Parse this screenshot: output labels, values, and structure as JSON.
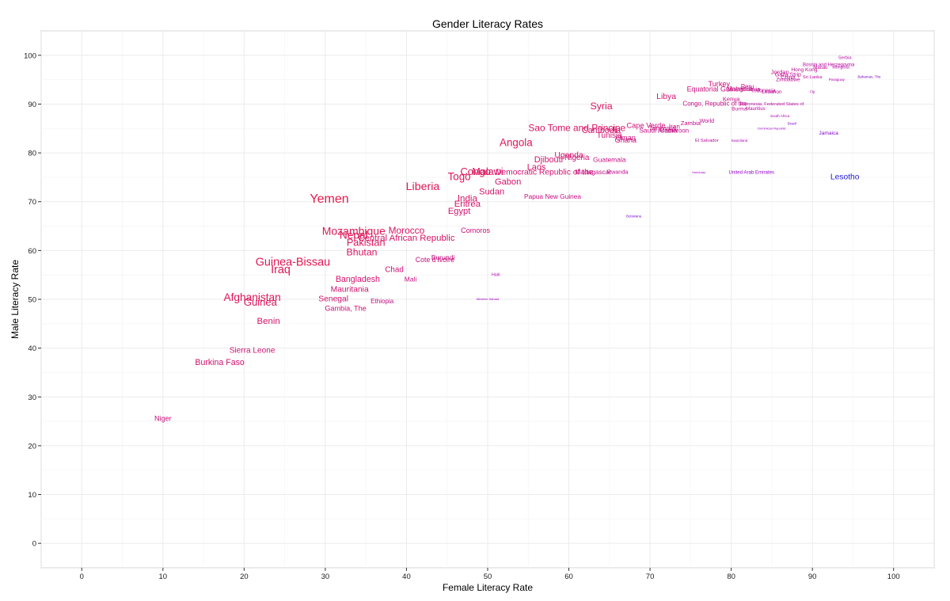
{
  "chart_data": {
    "type": "scatter",
    "title": "Gender Literacy Rates",
    "xlabel": "Female Literacy Rate",
    "ylabel": "Male Literacy Rate",
    "xlim": [
      -5,
      105
    ],
    "ylim": [
      -5,
      105
    ],
    "xticks": [
      "0",
      "10",
      "20",
      "30",
      "40",
      "50",
      "60",
      "70",
      "80",
      "90",
      "100"
    ],
    "yticks": [
      "0",
      "10",
      "20",
      "30",
      "40",
      "50",
      "60",
      "70",
      "80",
      "90",
      "100"
    ],
    "grid": true,
    "point_style": "text labels sized and colored by male-female literacy gap (red = large gap, purple/blue = small or reversed gap)",
    "color_scale": {
      "large_gap": "#e6194b",
      "small_gap": "#a000c8",
      "reversed_gap": "#1a1adc"
    },
    "points": [
      {
        "label": "Niger",
        "x": 10,
        "y": 25.5
      },
      {
        "label": "Burkina Faso",
        "x": 17,
        "y": 37
      },
      {
        "label": "Sierra Leone",
        "x": 21,
        "y": 39.5
      },
      {
        "label": "Benin",
        "x": 23,
        "y": 45.5
      },
      {
        "label": "Afghanistan",
        "x": 21,
        "y": 50.3
      },
      {
        "label": "Guinea",
        "x": 22,
        "y": 49.3
      },
      {
        "label": "Iraq",
        "x": 24.5,
        "y": 56
      },
      {
        "label": "Guinea-Bissau",
        "x": 26,
        "y": 57.5
      },
      {
        "label": "Gambia, The",
        "x": 32.5,
        "y": 48
      },
      {
        "label": "Senegal",
        "x": 31,
        "y": 50
      },
      {
        "label": "Ethiopia",
        "x": 37,
        "y": 49.5
      },
      {
        "label": "Mauritania",
        "x": 33,
        "y": 52
      },
      {
        "label": "Bangladesh",
        "x": 34,
        "y": 54
      },
      {
        "label": "Bhutan",
        "x": 34.5,
        "y": 59.5
      },
      {
        "label": "Pakistan",
        "x": 35,
        "y": 61.5
      },
      {
        "label": "Nepal",
        "x": 33.5,
        "y": 63
      },
      {
        "label": "Mozambique",
        "x": 33.5,
        "y": 63.8
      },
      {
        "label": "Central African Republic",
        "x": 40,
        "y": 62.5
      },
      {
        "label": "Morocco",
        "x": 40,
        "y": 64
      },
      {
        "label": "Chad",
        "x": 38.5,
        "y": 56
      },
      {
        "label": "Mali",
        "x": 40.5,
        "y": 54
      },
      {
        "label": "Yemen",
        "x": 30.5,
        "y": 70.5
      },
      {
        "label": "Cote d'Ivoire",
        "x": 43.5,
        "y": 58
      },
      {
        "label": "Burundi",
        "x": 44.5,
        "y": 58.5
      },
      {
        "label": "Comoros",
        "x": 48.5,
        "y": 64
      },
      {
        "label": "Egypt",
        "x": 46.5,
        "y": 68
      },
      {
        "label": "Eritrea",
        "x": 47.5,
        "y": 69.5
      },
      {
        "label": "India",
        "x": 47.5,
        "y": 70.5
      },
      {
        "label": "Liberia",
        "x": 42,
        "y": 73
      },
      {
        "label": "Togo",
        "x": 46.5,
        "y": 75
      },
      {
        "label": "Sudan",
        "x": 50.5,
        "y": 72
      },
      {
        "label": "Gabon",
        "x": 52.5,
        "y": 74
      },
      {
        "label": "Congo",
        "x": 48.5,
        "y": 76
      },
      {
        "label": "Malawi",
        "x": 50,
        "y": 76
      },
      {
        "label": "Democratic Republic of the",
        "x": 57,
        "y": 76
      },
      {
        "label": "Papua New Guinea",
        "x": 58,
        "y": 71
      },
      {
        "label": "Laos",
        "x": 56,
        "y": 77
      },
      {
        "label": "Djibouti",
        "x": 57.5,
        "y": 78.5
      },
      {
        "label": "Uganda",
        "x": 60,
        "y": 79.5
      },
      {
        "label": "Nigeria",
        "x": 61,
        "y": 79
      },
      {
        "label": "Guatemala",
        "x": 65,
        "y": 78.5
      },
      {
        "label": "Madagascar",
        "x": 63,
        "y": 76
      },
      {
        "label": "Rwanda",
        "x": 66,
        "y": 76
      },
      {
        "label": "Angola",
        "x": 53.5,
        "y": 82
      },
      {
        "label": "Sao Tome and Principe",
        "x": 61,
        "y": 85
      },
      {
        "label": "Cambodia",
        "x": 64,
        "y": 84.5
      },
      {
        "label": "Tunisia",
        "x": 65,
        "y": 83.5
      },
      {
        "label": "Oman",
        "x": 67,
        "y": 83
      },
      {
        "label": "Ghana",
        "x": 67,
        "y": 82.5
      },
      {
        "label": "Cape Verde",
        "x": 69.5,
        "y": 85.5
      },
      {
        "label": "Tanzania",
        "x": 71.5,
        "y": 85
      },
      {
        "label": "Saudi Arabia",
        "x": 71,
        "y": 84.5
      },
      {
        "label": "Cameroon",
        "x": 73,
        "y": 84.5
      },
      {
        "label": "Iran",
        "x": 73,
        "y": 85.3
      },
      {
        "label": "Zambia",
        "x": 75,
        "y": 86
      },
      {
        "label": "World",
        "x": 77,
        "y": 86.5
      },
      {
        "label": "Syria",
        "x": 64,
        "y": 89.5
      },
      {
        "label": "Libya",
        "x": 72,
        "y": 91.5
      },
      {
        "label": "Congo, Republic of the",
        "x": 78,
        "y": 90
      },
      {
        "label": "Equatorial Guinea",
        "x": 78,
        "y": 93
      },
      {
        "label": "Turkey",
        "x": 78.5,
        "y": 94
      },
      {
        "label": "Kenya",
        "x": 80,
        "y": 91
      },
      {
        "label": "Burma",
        "x": 81,
        "y": 89
      },
      {
        "label": "Mauritius",
        "x": 83,
        "y": 89
      },
      {
        "label": "Peru",
        "x": 82,
        "y": 93.5
      },
      {
        "label": "Malaysia",
        "x": 81,
        "y": 93
      },
      {
        "label": "Bolivia",
        "x": 82.5,
        "y": 93
      },
      {
        "label": "Indonesia",
        "x": 84,
        "y": 92.7
      },
      {
        "label": "Lebanon",
        "x": 85,
        "y": 92.5
      },
      {
        "label": "El Salvador",
        "x": 77,
        "y": 82.5
      },
      {
        "label": "Swaziland",
        "x": 81,
        "y": 82.5
      },
      {
        "label": "Honduras",
        "x": 76,
        "y": 76
      },
      {
        "label": "United Arab Emirates",
        "x": 82.5,
        "y": 76
      },
      {
        "label": "Botswana",
        "x": 68,
        "y": 67
      },
      {
        "label": "Haiti",
        "x": 51,
        "y": 55
      },
      {
        "label": "Western Sahara",
        "x": 50,
        "y": 50
      },
      {
        "label": "Jamaica",
        "x": 92,
        "y": 84
      },
      {
        "label": "Lesotho",
        "x": 94,
        "y": 75
      },
      {
        "label": "China",
        "x": 87,
        "y": 95.5
      },
      {
        "label": "Zimbabwe",
        "x": 87,
        "y": 95
      },
      {
        "label": "Jordan",
        "x": 86,
        "y": 96.5
      },
      {
        "label": "Gaza Strip",
        "x": 87,
        "y": 96
      },
      {
        "label": "Bosnia and Herzegovina",
        "x": 92,
        "y": 98
      },
      {
        "label": "Serbia",
        "x": 94,
        "y": 99.5
      },
      {
        "label": "Micronesia, Federated States of",
        "x": 85,
        "y": 90
      },
      {
        "label": "Mongolia",
        "x": 93.5,
        "y": 97.5
      },
      {
        "label": "Macau",
        "x": 91,
        "y": 97.5
      },
      {
        "label": "Hong Kong",
        "x": 89,
        "y": 97
      },
      {
        "label": "Sri Lanka",
        "x": 90,
        "y": 95.5
      },
      {
        "label": "Paraguay",
        "x": 93,
        "y": 95
      },
      {
        "label": "Fiji",
        "x": 90,
        "y": 92.5
      },
      {
        "label": "Bahamas, The",
        "x": 97,
        "y": 95.5
      },
      {
        "label": "South Africa",
        "x": 86,
        "y": 87.5
      },
      {
        "label": "Brazil",
        "x": 87.5,
        "y": 86
      },
      {
        "label": "Dominican Republic",
        "x": 85,
        "y": 85
      }
    ]
  }
}
